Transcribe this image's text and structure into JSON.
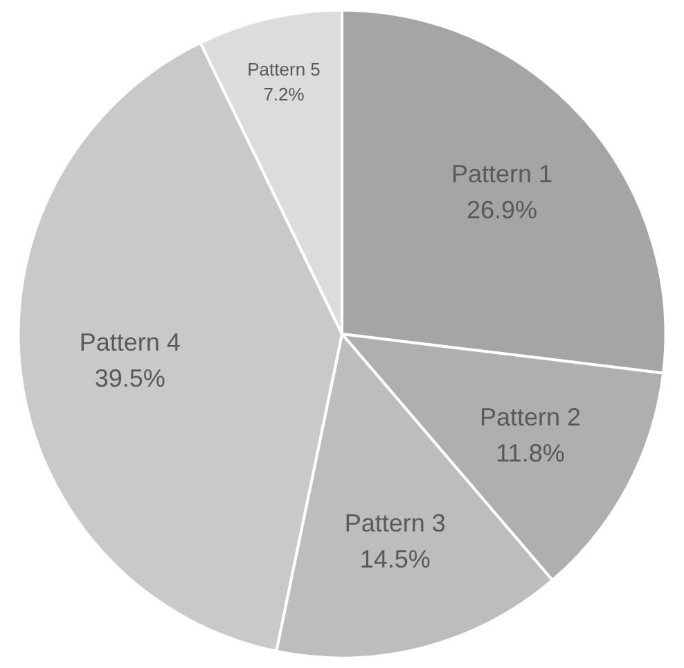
{
  "chart_data": {
    "type": "pie",
    "categories": [
      "Pattern 1",
      "Pattern 2",
      "Pattern 3",
      "Pattern 4",
      "Pattern 5"
    ],
    "values": [
      26.9,
      11.8,
      14.5,
      39.5,
      7.2
    ],
    "colors": [
      "#a5a5a5",
      "#afafaf",
      "#bdbdbd",
      "#c9c9c9",
      "#dcdcdc"
    ],
    "value_labels": [
      "26.9%",
      "11.8%",
      "14.5%",
      "39.5%",
      "7.2%"
    ]
  }
}
